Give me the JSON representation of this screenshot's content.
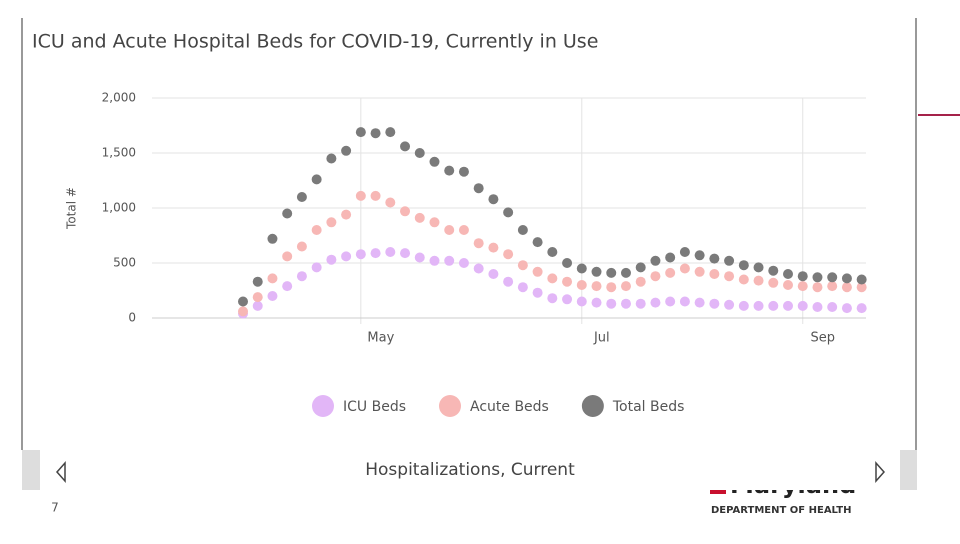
{
  "chart_data": {
    "type": "scatter-line",
    "title": "ICU and Acute Hospital Beds for COVID-19, Currently in Use",
    "y_label": "Total #",
    "categories": [
      null,
      null,
      null,
      null,
      null,
      null,
      null,
      null,
      "May",
      null,
      null,
      null,
      null,
      null,
      null,
      null,
      null,
      null,
      null,
      null,
      null,
      null,
      null,
      "Jul",
      null,
      null,
      null,
      null,
      null,
      null,
      null,
      null,
      null,
      null,
      null,
      null,
      null,
      null,
      "Sep",
      null,
      null,
      null,
      null
    ],
    "series": [
      {
        "name": "ICU Beds",
        "color": "#e2b6f7",
        "values": [
          40,
          110,
          200,
          290,
          380,
          460,
          530,
          560,
          580,
          590,
          600,
          590,
          550,
          520,
          520,
          500,
          450,
          400,
          330,
          280,
          230,
          180,
          170,
          150,
          140,
          130,
          130,
          130,
          140,
          150,
          150,
          140,
          130,
          120,
          110,
          110,
          110,
          110,
          110,
          100,
          100,
          90,
          90
        ]
      },
      {
        "name": "Acute Beds",
        "color": "#f7b7b5",
        "values": [
          60,
          190,
          360,
          560,
          650,
          800,
          870,
          940,
          1110,
          1110,
          1050,
          970,
          910,
          870,
          800,
          800,
          680,
          640,
          580,
          480,
          420,
          360,
          330,
          300,
          290,
          280,
          290,
          330,
          380,
          410,
          450,
          420,
          400,
          380,
          350,
          340,
          320,
          300,
          290,
          280,
          290,
          280,
          280
        ]
      },
      {
        "name": "Total Beds",
        "color": "#7a7a7a",
        "values": [
          150,
          330,
          720,
          950,
          1100,
          1260,
          1450,
          1520,
          1690,
          1680,
          1690,
          1560,
          1500,
          1420,
          1340,
          1330,
          1180,
          1080,
          960,
          800,
          690,
          600,
          500,
          450,
          420,
          410,
          410,
          460,
          520,
          550,
          600,
          570,
          540,
          520,
          480,
          460,
          430,
          400,
          380,
          370,
          370,
          360,
          350
        ]
      }
    ],
    "ylim": [
      0,
      2000
    ],
    "yticks": [
      0,
      500,
      {
        "value": 1000,
        "label": "1,000"
      },
      {
        "value": 1500,
        "label": "1,500"
      },
      {
        "value": 2000,
        "label": "2,000"
      }
    ],
    "grid": true
  },
  "panel_caption": "Hospitalizations, Current",
  "slide_number": "7",
  "logo": {
    "name": "Maryland",
    "department": "DEPARTMENT OF HEALTH"
  }
}
